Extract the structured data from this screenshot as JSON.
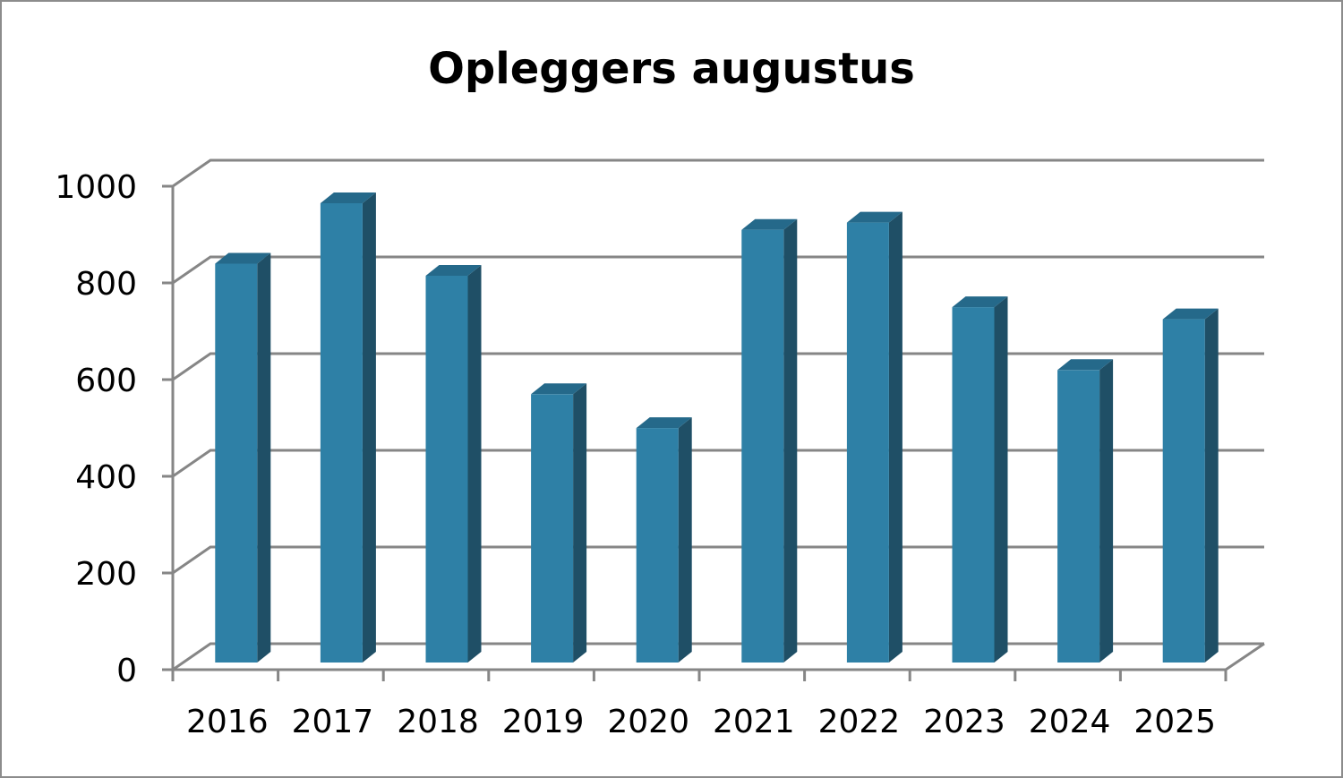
{
  "chart_data": {
    "type": "bar",
    "title": "Opleggers augustus",
    "xlabel": "",
    "ylabel": "",
    "categories": [
      "2016",
      "2017",
      "2018",
      "2019",
      "2020",
      "2021",
      "2022",
      "2023",
      "2024",
      "2025"
    ],
    "series": [
      {
        "values": [
          825,
          950,
          800,
          555,
          485,
          895,
          910,
          735,
          605,
          710
        ]
      }
    ],
    "ylim": [
      0,
      1000
    ],
    "yticks": [
      "0",
      "200",
      "400",
      "600",
      "800",
      "1000"
    ],
    "grid": true,
    "legend": "none",
    "style": "3d-column",
    "colors": {
      "front": "#2e80a6",
      "side": "#1f4f66",
      "top": "#25698a",
      "grid": "#868686"
    }
  }
}
